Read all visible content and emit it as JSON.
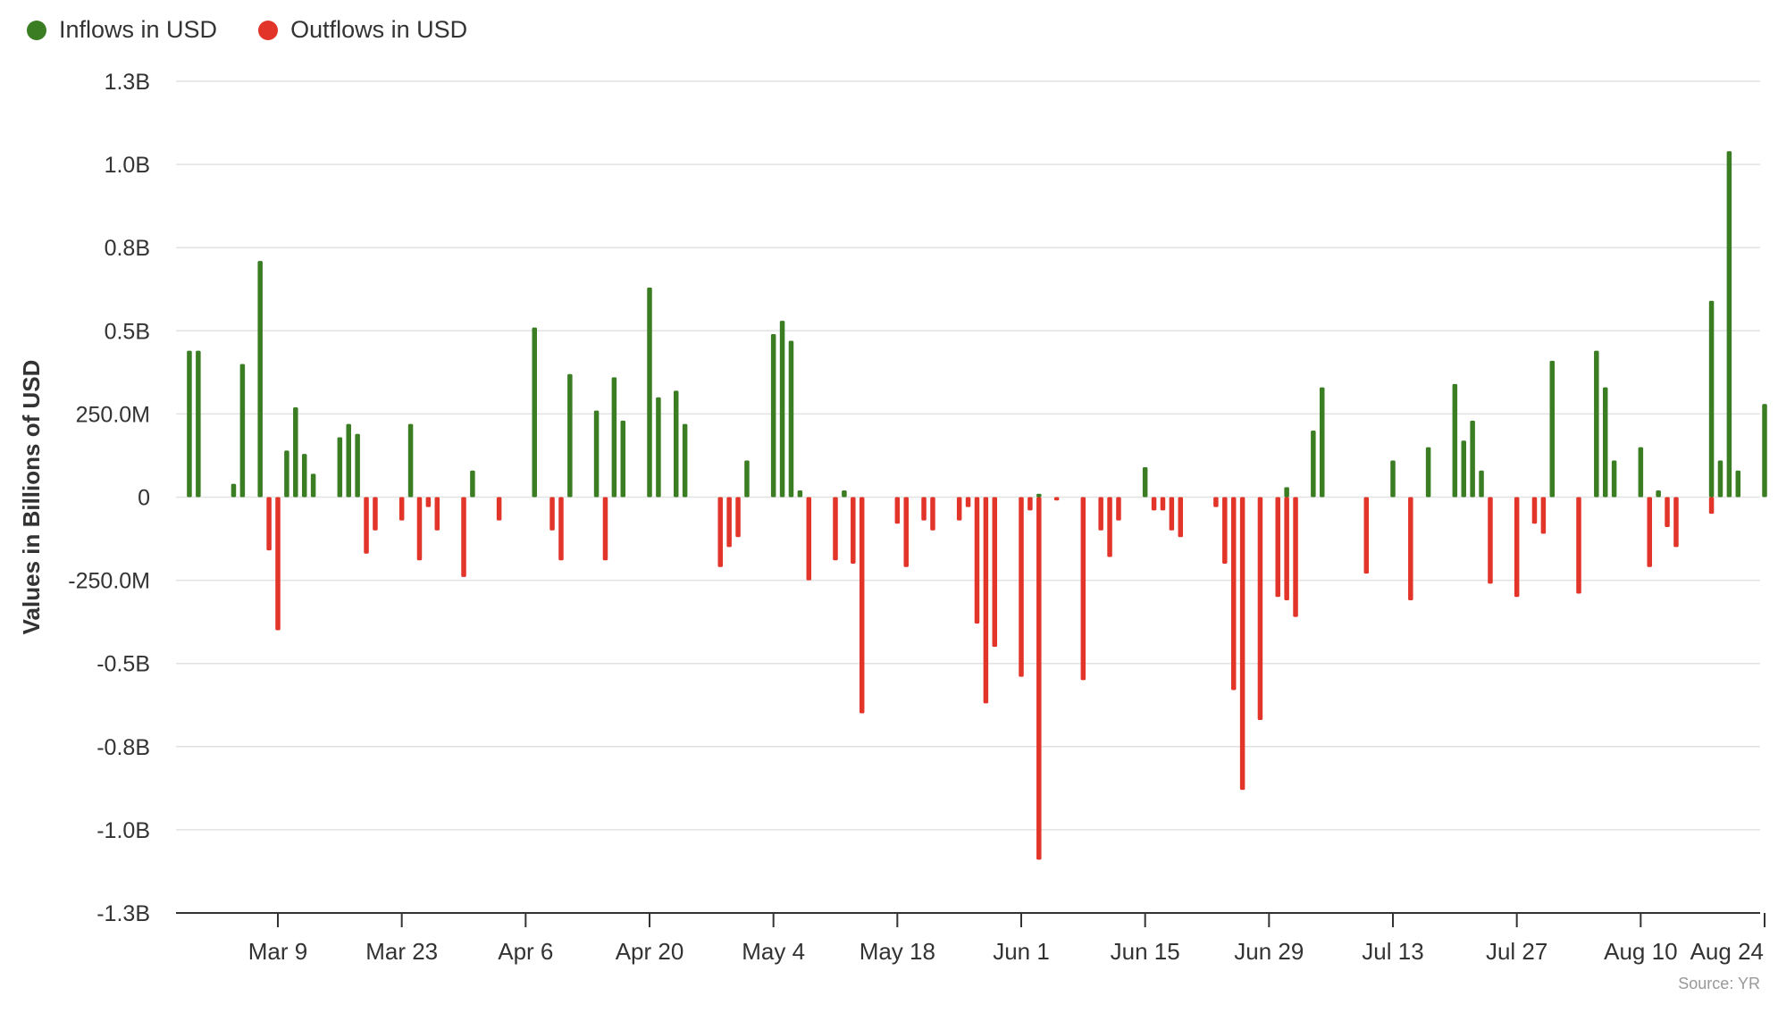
{
  "colors": {
    "inflow": "#3a7d22",
    "outflow": "#e3342a",
    "grid": "#e2e2e2",
    "axis": "#333333"
  },
  "legend": [
    {
      "label": "Inflows in USD",
      "color": "#3a7d22",
      "icon": "circle-dot-icon"
    },
    {
      "label": "Outflows in USD",
      "color": "#e3342a",
      "icon": "circle-dot-icon"
    }
  ],
  "source_text": "Source: YR",
  "chart_data": {
    "type": "bar",
    "ylabel": "Values in Billions of USD",
    "ylim": [
      -1.25,
      1.25
    ],
    "y_ticks": [
      {
        "value": 1.25,
        "label": "1.3B"
      },
      {
        "value": 1.0,
        "label": "1.0B"
      },
      {
        "value": 0.75,
        "label": "0.8B"
      },
      {
        "value": 0.5,
        "label": "0.5B"
      },
      {
        "value": 0.25,
        "label": "250.0M"
      },
      {
        "value": 0,
        "label": "0"
      },
      {
        "value": -0.25,
        "label": "-250.0M"
      },
      {
        "value": -0.5,
        "label": "-0.5B"
      },
      {
        "value": -0.75,
        "label": "-0.8B"
      },
      {
        "value": -1.0,
        "label": "-1.0B"
      },
      {
        "value": -1.25,
        "label": "-1.3B"
      }
    ],
    "x_ticks": [
      "Mar 9",
      "Mar 23",
      "Apr 6",
      "Apr 20",
      "May 4",
      "May 18",
      "Jun 1",
      "Jun 15",
      "Jun 29",
      "Jul 13",
      "Jul 27",
      "Aug 10",
      "Aug 24"
    ],
    "grid": true,
    "legend_position": "top-left",
    "series": [
      {
        "name": "Inflows in USD",
        "unit": "billion USD",
        "points": [
          [
            "Feb 28",
            0.44
          ],
          [
            "Feb 29",
            0.44
          ],
          [
            "Mar 4",
            0.04
          ],
          [
            "Mar 5",
            0.4
          ],
          [
            "Mar 7",
            0.71
          ],
          [
            "Mar 10",
            0.14
          ],
          [
            "Mar 11",
            0.27
          ],
          [
            "Mar 12",
            0.13
          ],
          [
            "Mar 13",
            0.07
          ],
          [
            "Mar 16",
            0.18
          ],
          [
            "Mar 17",
            0.22
          ],
          [
            "Mar 18",
            0.19
          ],
          [
            "Mar 24",
            0.22
          ],
          [
            "Mar 31",
            0.08
          ],
          [
            "Apr 7",
            0.51
          ],
          [
            "Apr 11",
            0.37
          ],
          [
            "Apr 14",
            0.26
          ],
          [
            "Apr 16",
            0.36
          ],
          [
            "Apr 17",
            0.23
          ],
          [
            "Apr 20",
            0.63
          ],
          [
            "Apr 21",
            0.3
          ],
          [
            "Apr 23",
            0.32
          ],
          [
            "Apr 24",
            0.22
          ],
          [
            "May 1",
            0.11
          ],
          [
            "May 4",
            0.49
          ],
          [
            "May 5",
            0.53
          ],
          [
            "May 6",
            0.47
          ],
          [
            "May 7",
            0.02
          ],
          [
            "May 12",
            0.02
          ],
          [
            "Jun 3",
            0.01
          ],
          [
            "Jun 15",
            0.09
          ],
          [
            "Jul 1",
            0.03
          ],
          [
            "Jul 4",
            0.2
          ],
          [
            "Jul 5",
            0.33
          ],
          [
            "Jul 13",
            0.11
          ],
          [
            "Jul 17",
            0.15
          ],
          [
            "Jul 20",
            0.34
          ],
          [
            "Jul 21",
            0.17
          ],
          [
            "Jul 22",
            0.23
          ],
          [
            "Jul 23",
            0.08
          ],
          [
            "Jul 31",
            0.41
          ],
          [
            "Aug 5",
            0.44
          ],
          [
            "Aug 6",
            0.33
          ],
          [
            "Aug 7",
            0.11
          ],
          [
            "Aug 10",
            0.15
          ],
          [
            "Aug 12",
            0.02
          ],
          [
            "Aug 18",
            0.59
          ],
          [
            "Aug 19",
            0.11
          ],
          [
            "Aug 20",
            1.04
          ],
          [
            "Aug 21",
            0.08
          ],
          [
            "Aug 24",
            0.28
          ]
        ]
      },
      {
        "name": "Outflows in USD",
        "unit": "billion USD",
        "points": [
          [
            "Mar 8",
            -0.16
          ],
          [
            "Mar 9",
            -0.4
          ],
          [
            "Mar 19",
            -0.17
          ],
          [
            "Mar 20",
            -0.1
          ],
          [
            "Mar 23",
            -0.07
          ],
          [
            "Mar 25",
            -0.19
          ],
          [
            "Mar 26",
            -0.03
          ],
          [
            "Mar 27",
            -0.1
          ],
          [
            "Mar 30",
            -0.24
          ],
          [
            "Apr 3",
            -0.07
          ],
          [
            "Apr 9",
            -0.1
          ],
          [
            "Apr 10",
            -0.19
          ],
          [
            "Apr 15",
            -0.19
          ],
          [
            "Apr 28",
            -0.21
          ],
          [
            "Apr 29",
            -0.15
          ],
          [
            "Apr 30",
            -0.12
          ],
          [
            "May 8",
            -0.25
          ],
          [
            "May 11",
            -0.19
          ],
          [
            "May 13",
            -0.2
          ],
          [
            "May 14",
            -0.65
          ],
          [
            "May 18",
            -0.08
          ],
          [
            "May 19",
            -0.21
          ],
          [
            "May 21",
            -0.07
          ],
          [
            "May 22",
            -0.1
          ],
          [
            "May 25",
            -0.07
          ],
          [
            "May 26",
            -0.03
          ],
          [
            "May 27",
            -0.38
          ],
          [
            "May 28",
            -0.62
          ],
          [
            "May 29",
            -0.45
          ],
          [
            "Jun 1",
            -0.54
          ],
          [
            "Jun 2",
            -0.04
          ],
          [
            "Jun 3",
            -1.09
          ],
          [
            "Jun 5",
            -0.01
          ],
          [
            "Jun 8",
            -0.55
          ],
          [
            "Jun 10",
            -0.1
          ],
          [
            "Jun 11",
            -0.18
          ],
          [
            "Jun 12",
            -0.07
          ],
          [
            "Jun 16",
            -0.04
          ],
          [
            "Jun 17",
            -0.04
          ],
          [
            "Jun 18",
            -0.1
          ],
          [
            "Jun 19",
            -0.12
          ],
          [
            "Jun 23",
            -0.03
          ],
          [
            "Jun 24",
            -0.2
          ],
          [
            "Jun 25",
            -0.58
          ],
          [
            "Jun 26",
            -0.88
          ],
          [
            "Jun 28",
            -0.67
          ],
          [
            "Jun 30",
            -0.3
          ],
          [
            "Jul 1",
            -0.31
          ],
          [
            "Jul 2",
            -0.36
          ],
          [
            "Jul 10",
            -0.23
          ],
          [
            "Jul 15",
            -0.31
          ],
          [
            "Jul 24",
            -0.26
          ],
          [
            "Jul 27",
            -0.3
          ],
          [
            "Jul 29",
            -0.08
          ],
          [
            "Jul 30",
            -0.11
          ],
          [
            "Aug 3",
            -0.29
          ],
          [
            "Aug 11",
            -0.21
          ],
          [
            "Aug 13",
            -0.09
          ],
          [
            "Aug 14",
            -0.15
          ],
          [
            "Aug 18",
            -0.05
          ]
        ]
      }
    ]
  }
}
